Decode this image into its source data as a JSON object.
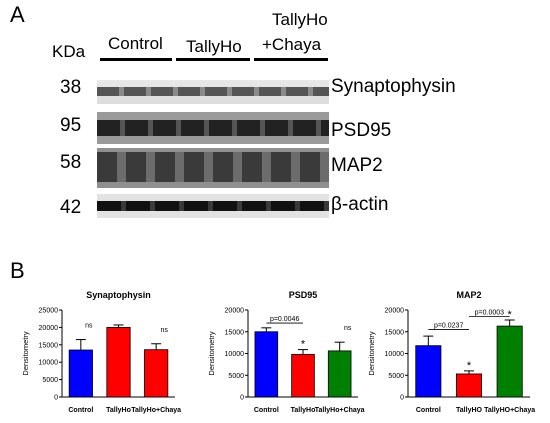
{
  "panel_a": {
    "letter": "A",
    "unit_label": "KDa",
    "groups": [
      "Control",
      "TallyHo",
      "TallyHo",
      "+Chaya"
    ],
    "rows": [
      {
        "mw": "38",
        "protein": "Synaptophysin"
      },
      {
        "mw": "95",
        "protein": "PSD95"
      },
      {
        "mw": "58",
        "protein": "MAP2"
      },
      {
        "mw": "42",
        "protein": "β-actin"
      }
    ]
  },
  "panel_b": {
    "letter": "B"
  },
  "colors": {
    "control": "#0000ff",
    "tallyho": "#ff0000",
    "chaya_ns": "#ff0000",
    "chaya": "#008000"
  },
  "chart_data": [
    {
      "type": "bar",
      "title": "Synaptophysin",
      "ylabel": "Densitometry",
      "ylim": [
        0,
        25000
      ],
      "yticks": [
        "0",
        "5000",
        "10000",
        "15000",
        "20000",
        "25000"
      ],
      "categories": [
        "Control",
        "TallyHo",
        "TallyHo+Chaya"
      ],
      "values": [
        13500,
        20000,
        13600
      ],
      "errors": [
        3000,
        700,
        1700
      ],
      "colors": [
        "#0000ff",
        "#ff0000",
        "#ff0000"
      ],
      "annotations": [
        {
          "text": "ns",
          "bar": 0
        },
        {
          "text": "ns",
          "bar": 2
        }
      ]
    },
    {
      "type": "bar",
      "title": "PSD95",
      "ylabel": "Densitometry",
      "ylim": [
        0,
        20000
      ],
      "yticks": [
        "0",
        "5000",
        "10000",
        "15000",
        "20000"
      ],
      "categories": [
        "Control",
        "TallyHo",
        "TallyHo+Chaya"
      ],
      "values": [
        15000,
        9800,
        10600
      ],
      "errors": [
        900,
        1100,
        2000
      ],
      "colors": [
        "#0000ff",
        "#ff0000",
        "#008000"
      ],
      "annotations": [
        {
          "text": "*",
          "bar": 1
        },
        {
          "text": "ns",
          "bar": 2
        }
      ],
      "comparisons": [
        {
          "from": 0,
          "to": 1,
          "y": 17000,
          "text": "p=0.0046"
        }
      ]
    },
    {
      "type": "bar",
      "title": "MAP2",
      "ylabel": "Densitometry",
      "ylim": [
        0,
        20000
      ],
      "yticks": [
        "0",
        "5000",
        "10000",
        "15000",
        "20000"
      ],
      "categories": [
        "Control",
        "TallyHO",
        "TallyHO+Chaya"
      ],
      "values": [
        11800,
        5300,
        16300
      ],
      "errors": [
        2200,
        700,
        1400
      ],
      "colors": [
        "#0000ff",
        "#ff0000",
        "#008000"
      ],
      "annotations": [
        {
          "text": "*",
          "bar": 1
        },
        {
          "text": "*",
          "bar": 2
        }
      ],
      "comparisons": [
        {
          "from": 0,
          "to": 1,
          "y": 15500,
          "text": "p=0.0237"
        },
        {
          "from": 1,
          "to": 2,
          "y": 18500,
          "text": "p=0.0003"
        }
      ]
    }
  ]
}
